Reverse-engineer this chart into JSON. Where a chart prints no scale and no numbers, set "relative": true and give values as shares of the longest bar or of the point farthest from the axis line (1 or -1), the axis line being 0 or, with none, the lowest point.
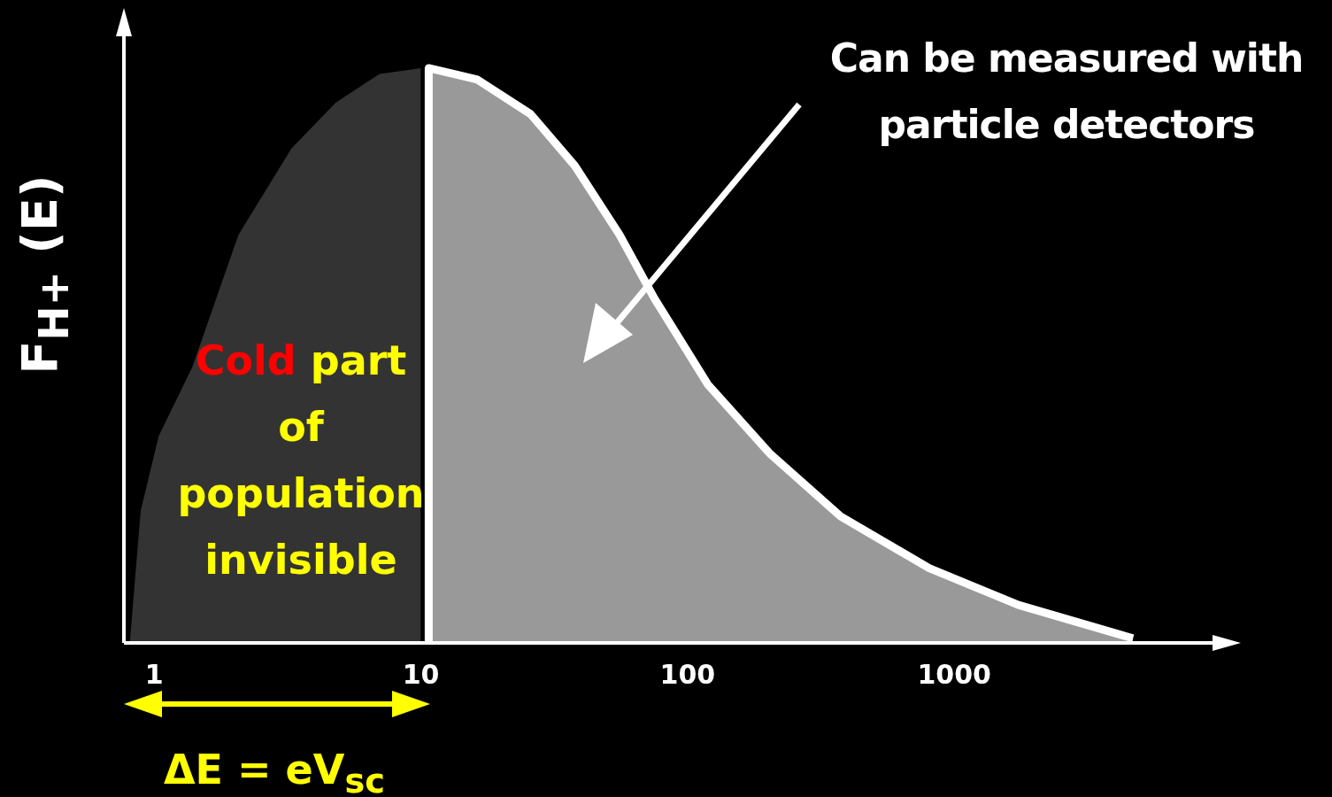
{
  "chart_data": {
    "type": "area",
    "ylabel": "F$_{H+}$ (E)",
    "relative": true,
    "log": "x",
    "xlim": [
      0.77,
      9300
    ],
    "xticks": [
      1,
      10,
      100,
      1000
    ],
    "grid": false,
    "legend": false,
    "annotations": [
      "Can be measured with particle detectors",
      "Cold part of population invisible",
      "ΔE = eV$_{sc}$"
    ],
    "series": [
      {
        "color": "#333333",
        "x": [
          0.81,
          0.89,
          1.04,
          1.39,
          2.07,
          3.27,
          4.8,
          7.0,
          10
        ],
        "values": [
          0,
          0.23,
          0.36,
          0.48,
          0.71,
          0.86,
          0.94,
          0.99,
          1.0
        ]
      },
      {
        "color": "#999999",
        "x": [
          10.7,
          10.7,
          16.3,
          25.8,
          37.8,
          55.6,
          75,
          119,
          203,
          375,
          806,
          1740,
          4680
        ],
        "values": [
          0,
          1.0,
          0.98,
          0.92,
          0.83,
          0.71,
          0.6,
          0.45,
          0.33,
          0.22,
          0.13,
          0.066,
          0.008
        ]
      }
    ]
  }
}
